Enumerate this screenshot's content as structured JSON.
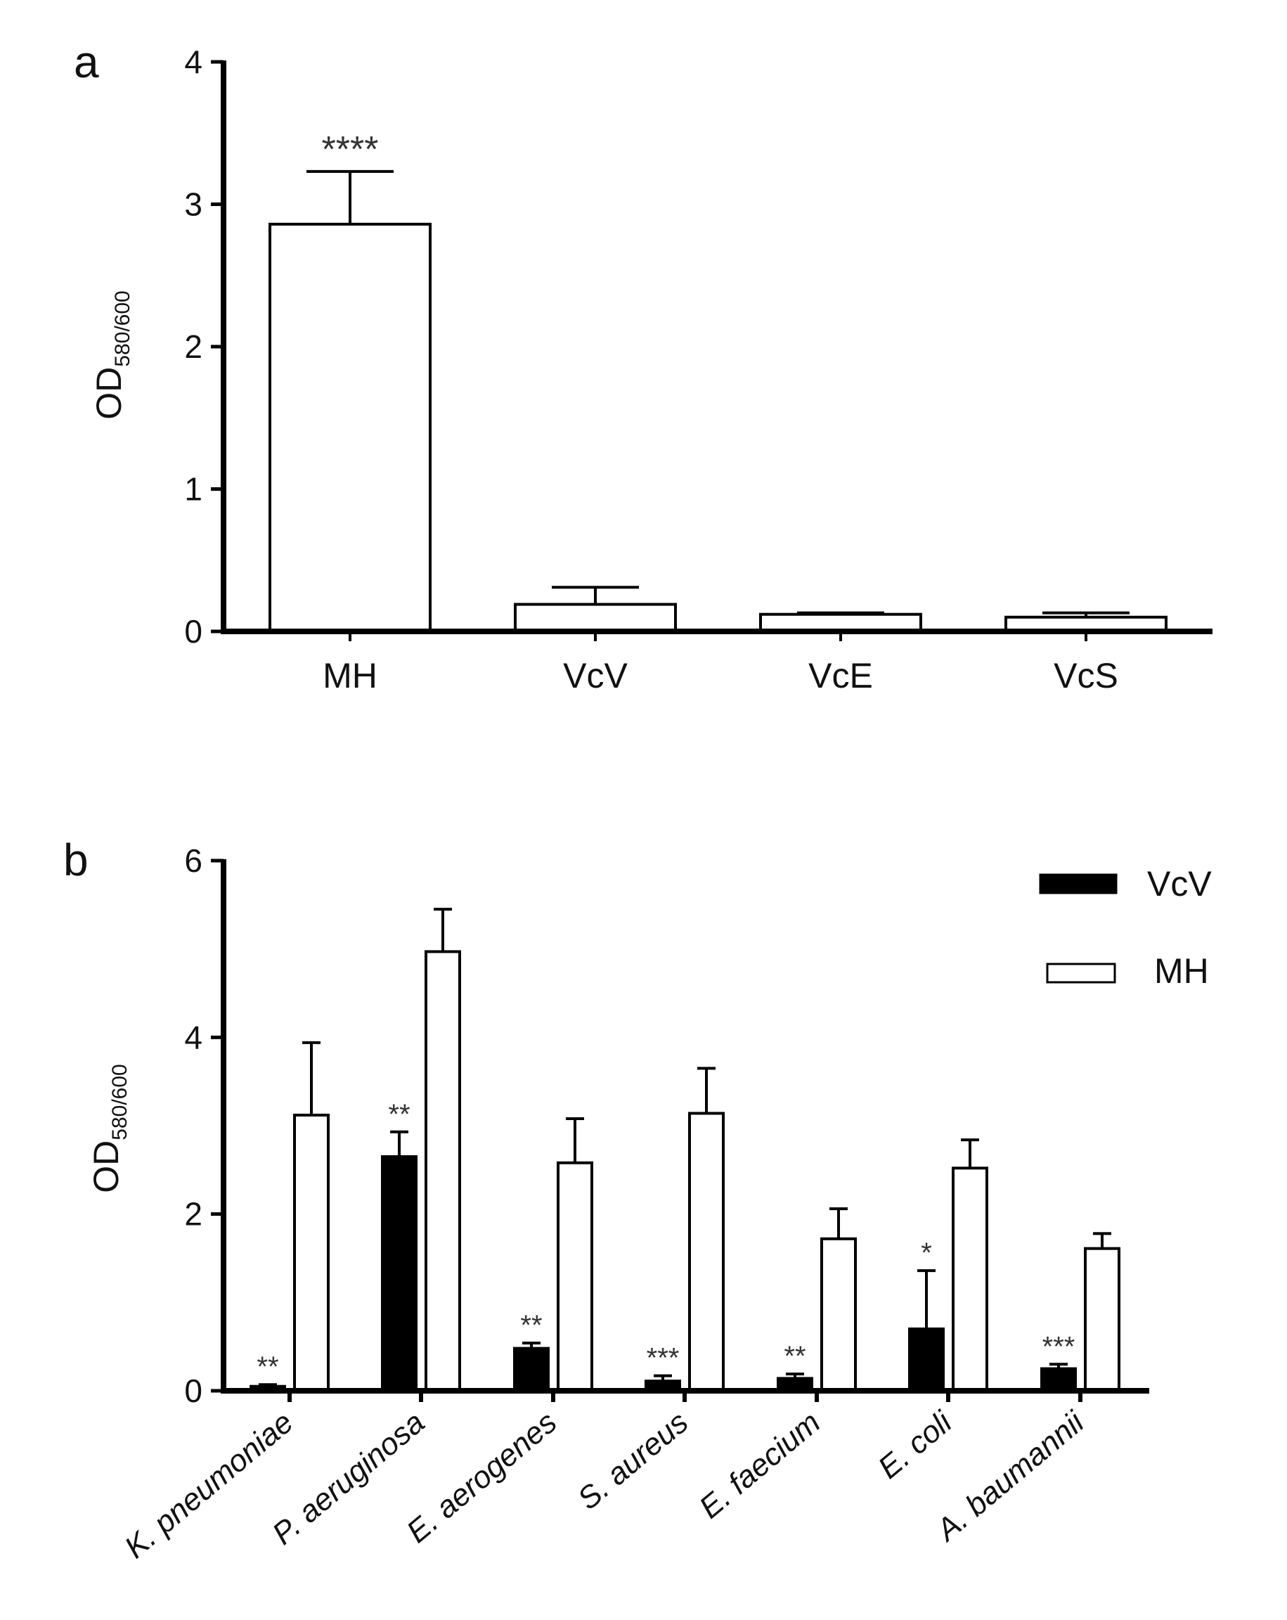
{
  "chart_data": [
    {
      "panel": "a",
      "type": "bar",
      "title": "",
      "xlabel": "",
      "ylabel": "OD",
      "ylabel_sub": "580/600",
      "ylim": [
        0,
        4
      ],
      "yticks": [
        "0",
        "1",
        "2",
        "3",
        "4"
      ],
      "categories": [
        "MH",
        "VcV",
        "VcE",
        "VcS"
      ],
      "series": [
        {
          "name": "OD",
          "values": [
            2.86,
            0.19,
            0.12,
            0.1
          ],
          "errors": [
            0.37,
            0.12,
            0.01,
            0.03
          ],
          "fill": "#ffffff"
        }
      ],
      "significance": [
        "****",
        "",
        "",
        ""
      ]
    },
    {
      "panel": "b",
      "type": "bar",
      "title": "",
      "xlabel": "",
      "ylabel": "OD",
      "ylabel_sub": "580/600",
      "ylim": [
        0,
        6
      ],
      "yticks": [
        "0",
        "2",
        "4",
        "6"
      ],
      "categories": [
        "K. pneumoniae",
        "P. aeruginosa",
        "E. aerogenes",
        "S. aureus",
        "E. faecium",
        "E. coli",
        "A. baumannii"
      ],
      "series": [
        {
          "name": "VcV",
          "values": [
            0.05,
            2.65,
            0.48,
            0.11,
            0.14,
            0.7,
            0.25
          ],
          "errors": [
            0.02,
            0.28,
            0.06,
            0.06,
            0.05,
            0.66,
            0.05
          ],
          "fill": "#000000"
        },
        {
          "name": "MH",
          "values": [
            3.12,
            4.97,
            2.58,
            3.14,
            1.72,
            2.52,
            1.61
          ],
          "errors": [
            0.82,
            0.48,
            0.5,
            0.51,
            0.34,
            0.32,
            0.17
          ],
          "fill": "#ffffff"
        }
      ],
      "significance": [
        "**",
        "**",
        "**",
        "***",
        "**",
        "*",
        "***"
      ],
      "legend": [
        {
          "label": "VcV",
          "fill": "#000000"
        },
        {
          "label": "MH",
          "fill": "#ffffff"
        }
      ]
    }
  ]
}
